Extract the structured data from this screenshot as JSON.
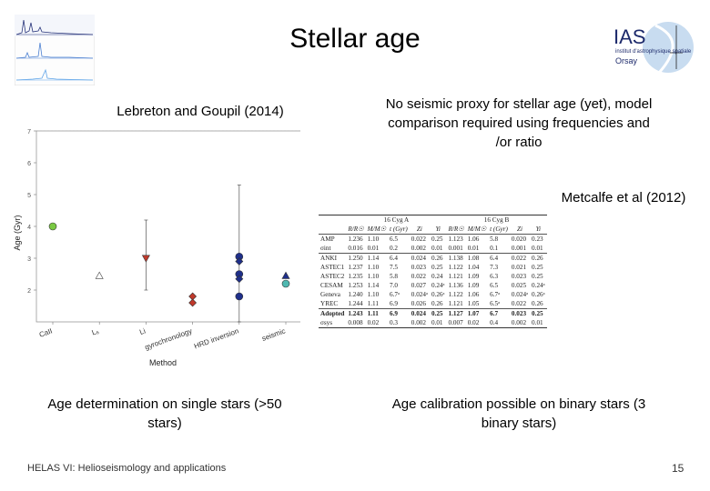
{
  "slide": {
    "title": "Stellar age",
    "left_caption": "Lebreton and Goupil (2014)",
    "right_caption": "No seismic proxy for stellar age (yet), model comparison required using frequencies and /or ratio",
    "metcalfe_caption": "Metcalfe et al (2012)",
    "bottom_left_caption": "Age determination on single stars (>50 stars)",
    "bottom_right_caption": "Age calibration possible on binary stars (3 binary stars)",
    "footer": "HELAS VI: Helioseismology and applications",
    "page_number": "15",
    "logo_text": "IAS",
    "logo_subtext": "Orsay"
  },
  "chart_data": {
    "type": "scatter",
    "title": "",
    "xlabel": "Method",
    "ylabel": "Age (Gyr)",
    "categories": [
      "CaII",
      "Li6",
      "Li",
      "gyrochronology",
      "HRD inversion",
      "seismic"
    ],
    "category_labels": [
      "CaII",
      "L₆",
      "Li",
      "gyrochronology",
      "HRD inversion",
      "seismic"
    ],
    "ylim": [
      1,
      7
    ],
    "yticks": [
      2,
      3,
      4,
      5,
      6,
      7
    ],
    "grid": true,
    "points": [
      {
        "x": "CaII",
        "y": 4.0,
        "color": "#7ac943",
        "marker": "circle"
      },
      {
        "x": "Li6",
        "y": 2.45,
        "color": "#ffffff",
        "marker": "triangle-up"
      },
      {
        "x": "Li",
        "y": 3.0,
        "color": "#c0392b",
        "marker": "triangle-down",
        "errlow": 2.0,
        "errhigh": 4.2
      },
      {
        "x": "gyrochronology",
        "y": 1.8,
        "color": "#c0392b",
        "marker": "diamond"
      },
      {
        "x": "gyrochronology",
        "y": 1.6,
        "color": "#c0392b",
        "marker": "diamond"
      },
      {
        "x": "HRD inversion",
        "y": 3.05,
        "color": "#1f2f8a",
        "marker": "circle",
        "errlow": 1.0,
        "errhigh": 5.3
      },
      {
        "x": "HRD inversion",
        "y": 2.9,
        "color": "#1f2f8a",
        "marker": "diamond"
      },
      {
        "x": "HRD inversion",
        "y": 2.5,
        "color": "#1f2f8a",
        "marker": "circle"
      },
      {
        "x": "HRD inversion",
        "y": 2.35,
        "color": "#1f2f8a",
        "marker": "diamond"
      },
      {
        "x": "HRD inversion",
        "y": 1.8,
        "color": "#1f2f8a",
        "marker": "circle"
      },
      {
        "x": "seismic",
        "y": 2.45,
        "color": "#1f2f8a",
        "marker": "triangle-up"
      },
      {
        "x": "seismic",
        "y": 2.2,
        "color": "#4fb8b0",
        "marker": "circle"
      }
    ]
  },
  "table": {
    "group_a": "16 Cyg A",
    "group_b": "16 Cyg B",
    "headers": [
      "",
      "R/R☉",
      "M/M☉",
      "t (Gyr)",
      "Zi",
      "Yi",
      "R/R☉",
      "M/M☉",
      "t (Gyr)",
      "Zi",
      "Yi"
    ],
    "rows": [
      [
        "AMP",
        "1.236",
        "1.10",
        "6.5",
        "0.022",
        "0.25",
        "1.123",
        "1.06",
        "5.8",
        "0.020",
        "0.23"
      ],
      [
        "σint",
        "0.016",
        "0.01",
        "0.2",
        "0.002",
        "0.01",
        "0.001",
        "0.01",
        "0.1",
        "0.001",
        "0.01"
      ],
      [
        "ANKI",
        "1.250",
        "1.14",
        "6.4",
        "0.024",
        "0.26",
        "1.138",
        "1.08",
        "6.4",
        "0.022",
        "0.26"
      ],
      [
        "ASTEC1",
        "1.237",
        "1.10",
        "7.5",
        "0.023",
        "0.25",
        "1.122",
        "1.04",
        "7.3",
        "0.021",
        "0.25"
      ],
      [
        "ASTEC2",
        "1.235",
        "1.10",
        "5.8",
        "0.022",
        "0.24",
        "1.121",
        "1.09",
        "6.3",
        "0.023",
        "0.25"
      ],
      [
        "CESAM",
        "1.253",
        "1.14",
        "7.0",
        "0.027",
        "0.24ᵃ",
        "1.136",
        "1.09",
        "6.5",
        "0.025",
        "0.24ᵃ"
      ],
      [
        "Geneva",
        "1.240",
        "1.10",
        "6.7ᵃ",
        "0.024ᵃ",
        "0.26ᵃ",
        "1.122",
        "1.06",
        "6.7ᵃ",
        "0.024ᵃ",
        "0.26ᵃ"
      ],
      [
        "YREC",
        "1.244",
        "1.11",
        "6.9",
        "0.026",
        "0.26",
        "1.121",
        "1.05",
        "6.5ᵃ",
        "0.022",
        "0.26"
      ],
      [
        "Adopted",
        "1.243",
        "1.11",
        "6.9",
        "0.024",
        "0.25",
        "1.127",
        "1.07",
        "6.7",
        "0.023",
        "0.25"
      ],
      [
        "σsys",
        "0.008",
        "0.02",
        "0.3",
        "0.002",
        "0.01",
        "0.007",
        "0.02",
        "0.4",
        "0.002",
        "0.01"
      ]
    ]
  }
}
